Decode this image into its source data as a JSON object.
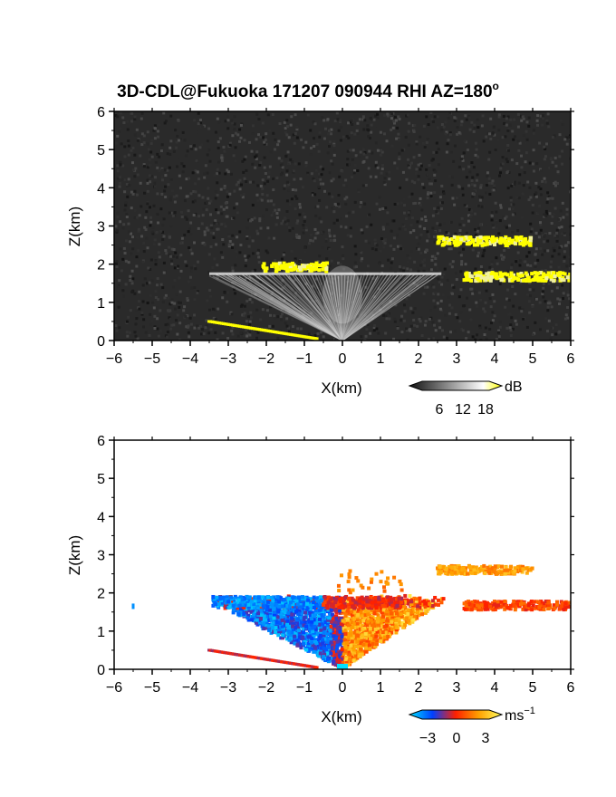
{
  "title": "3D-CDL@Fukuoka 171207 090944 RHI AZ=180",
  "title_superscript": "o",
  "chart_data": [
    {
      "type": "heatmap",
      "name": "backscatter-intensity",
      "xlabel": "X(km)",
      "ylabel": "Z(km)",
      "xlim": [
        -6,
        6
      ],
      "ylim": [
        0,
        6
      ],
      "xticks": [
        "-6",
        "-5",
        "-4",
        "-3",
        "-2",
        "-1",
        "0",
        "1",
        "2",
        "3",
        "4",
        "5",
        "6"
      ],
      "yticks": [
        "0",
        "1",
        "2",
        "3",
        "4",
        "5",
        "6"
      ],
      "colorbar": {
        "unit": "dB",
        "ticks": [
          "6",
          "12",
          "18"
        ],
        "range": [
          0,
          21
        ]
      },
      "colors": {
        "background": "#2a2a2a",
        "high": "#ffff00",
        "fan": "#dcdcdc"
      },
      "features": [
        {
          "label": "aerosol-layer-top",
          "x": [
            -3.5,
            2.5
          ],
          "z": 1.75,
          "value": 10
        },
        {
          "label": "cloud-layer-a",
          "x": [
            -2.1,
            -0.4
          ],
          "z": 1.92,
          "value": 19
        },
        {
          "label": "cloud-layer-b",
          "x": [
            2.5,
            5.0
          ],
          "z": 2.6,
          "value": 19
        },
        {
          "label": "cloud-layer-c",
          "x": [
            3.2,
            6.0
          ],
          "z": 1.67,
          "value": 19
        },
        {
          "label": "surface-echo",
          "x": [
            -3.5,
            -0.7
          ],
          "z": [
            0.5,
            0.05
          ],
          "value": 19
        }
      ]
    },
    {
      "type": "heatmap",
      "name": "doppler-velocity",
      "xlabel": "X(km)",
      "ylabel": "Z(km)",
      "xlim": [
        -6,
        6
      ],
      "ylim": [
        0,
        6
      ],
      "xticks": [
        "-6",
        "-5",
        "-4",
        "-3",
        "-2",
        "-1",
        "0",
        "1",
        "2",
        "3",
        "4",
        "5",
        "6"
      ],
      "yticks": [
        "0",
        "1",
        "2",
        "3",
        "4",
        "5",
        "6"
      ],
      "colorbar": {
        "unit": "ms",
        "unit_exponent": "−1",
        "ticks": [
          "−3",
          "0",
          "3"
        ],
        "range": [
          -4,
          4
        ]
      },
      "colors": {
        "negative": "#1040ff",
        "zero": "#ff2000",
        "positive": "#ffff40"
      },
      "features": [
        {
          "label": "negative-region",
          "x": [
            -3.5,
            0
          ],
          "z": [
            0,
            1.9
          ],
          "value": -2.5
        },
        {
          "label": "positive-region",
          "x": [
            0,
            2.7
          ],
          "z": [
            0,
            1.9
          ],
          "value": 1.5
        },
        {
          "label": "cloud-layer-b",
          "x": [
            2.5,
            5.0
          ],
          "z": 2.6,
          "value": 2.0
        },
        {
          "label": "cloud-layer-c",
          "x": [
            3.2,
            6.0
          ],
          "z": 1.67,
          "value": 0.5
        },
        {
          "label": "isolated-point",
          "x": [
            -5.5,
            -5.5
          ],
          "z": 1.65,
          "value": -3.0
        }
      ]
    }
  ]
}
